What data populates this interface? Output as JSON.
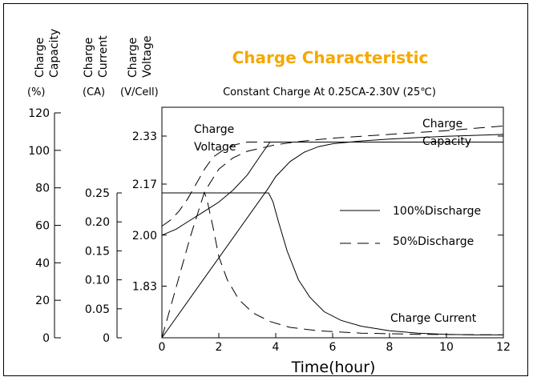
{
  "chart_data": {
    "type": "line",
    "title": "Charge Characteristic",
    "subtitle": "Constant Charge At 0.25CA-2.30V  (25℃)",
    "xlabel": "Time(hour)",
    "xlim": [
      0,
      12
    ],
    "x_ticks": [
      "0",
      "2",
      "4",
      "6",
      "8",
      "10",
      "12"
    ],
    "axes": [
      {
        "label_lines": [
          "Charge",
          "Capacity"
        ],
        "unit": "(%)",
        "range": [
          0,
          120
        ],
        "ticks": [
          "0",
          "20",
          "40",
          "60",
          "80",
          "100",
          "120"
        ]
      },
      {
        "label_lines": [
          "Charge",
          "Current"
        ],
        "unit": "(CA)",
        "range": [
          0,
          0.25
        ],
        "ticks": [
          "0",
          "0.05",
          "0.10",
          "0.15",
          "0.20",
          "0.25"
        ]
      },
      {
        "label_lines": [
          "Charge",
          "Voltage"
        ],
        "unit": "(V/Cell)",
        "range": [
          1.75,
          2.33
        ],
        "ticks": [
          "1.83",
          "2.00",
          "2.17",
          "2.33"
        ]
      }
    ],
    "legend": [
      {
        "label": "100%Discharge",
        "style": "solid"
      },
      {
        "label": "50%Discharge",
        "style": "dashed"
      }
    ],
    "annotations": [
      {
        "lines": [
          "Charge",
          "Voltage"
        ]
      },
      {
        "lines": [
          "Charge",
          "Capacity"
        ]
      },
      {
        "lines": [
          "Charge Current"
        ]
      }
    ],
    "series": [
      {
        "kind": "voltage",
        "discharge": "100%",
        "axis": 2,
        "x": [
          0,
          0.5,
          1,
          1.5,
          2,
          2.5,
          3,
          3.5,
          3.8,
          4,
          6,
          8,
          10,
          12
        ],
        "y": [
          2.0,
          2.02,
          2.05,
          2.08,
          2.11,
          2.15,
          2.2,
          2.27,
          2.31,
          2.31,
          2.31,
          2.31,
          2.31,
          2.31
        ]
      },
      {
        "kind": "voltage",
        "discharge": "50%",
        "axis": 2,
        "x": [
          0,
          0.3,
          0.6,
          0.9,
          1.2,
          1.5,
          1.8,
          2.1,
          2.5,
          3,
          3.8,
          4,
          6,
          8,
          10,
          12
        ],
        "y": [
          2.03,
          2.05,
          2.08,
          2.12,
          2.17,
          2.22,
          2.26,
          2.28,
          2.3,
          2.31,
          2.31,
          2.31,
          2.31,
          2.31,
          2.31,
          2.31
        ]
      },
      {
        "kind": "current",
        "discharge": "100%",
        "axis": 1,
        "x": [
          0,
          3.75,
          3.9,
          4.1,
          4.4,
          4.8,
          5.2,
          5.7,
          6.3,
          7,
          8,
          9,
          10,
          11,
          12
        ],
        "y": [
          0.25,
          0.25,
          0.235,
          0.2,
          0.15,
          0.1,
          0.07,
          0.045,
          0.03,
          0.02,
          0.012,
          0.008,
          0.006,
          0.005,
          0.005
        ]
      },
      {
        "kind": "current",
        "discharge": "50%",
        "axis": 1,
        "x": [
          0,
          1.5,
          1.6,
          1.8,
          2.0,
          2.3,
          2.7,
          3.2,
          3.8,
          4.5,
          5.5,
          7,
          9,
          12
        ],
        "y": [
          0.25,
          0.25,
          0.235,
          0.19,
          0.14,
          0.1,
          0.066,
          0.043,
          0.028,
          0.018,
          0.012,
          0.008,
          0.006,
          0.005
        ]
      },
      {
        "kind": "capacity",
        "discharge": "100%",
        "axis": 0,
        "x": [
          0,
          3.75,
          4.0,
          4.5,
          5.0,
          5.5,
          6,
          7,
          8,
          9,
          10,
          11,
          12
        ],
        "y": [
          0,
          80,
          86,
          94,
          99,
          102,
          103.5,
          105,
          106,
          106.8,
          107.5,
          108,
          108.5
        ]
      },
      {
        "kind": "capacity",
        "discharge": "50%",
        "axis": 0,
        "x": [
          0,
          0.5,
          1.0,
          1.5,
          2.0,
          2.5,
          3,
          4,
          5,
          6,
          8,
          10,
          12
        ],
        "y": [
          0,
          27,
          54,
          78,
          90,
          96,
          99.5,
          103,
          105,
          106.5,
          108.5,
          110.5,
          113
        ]
      }
    ]
  }
}
